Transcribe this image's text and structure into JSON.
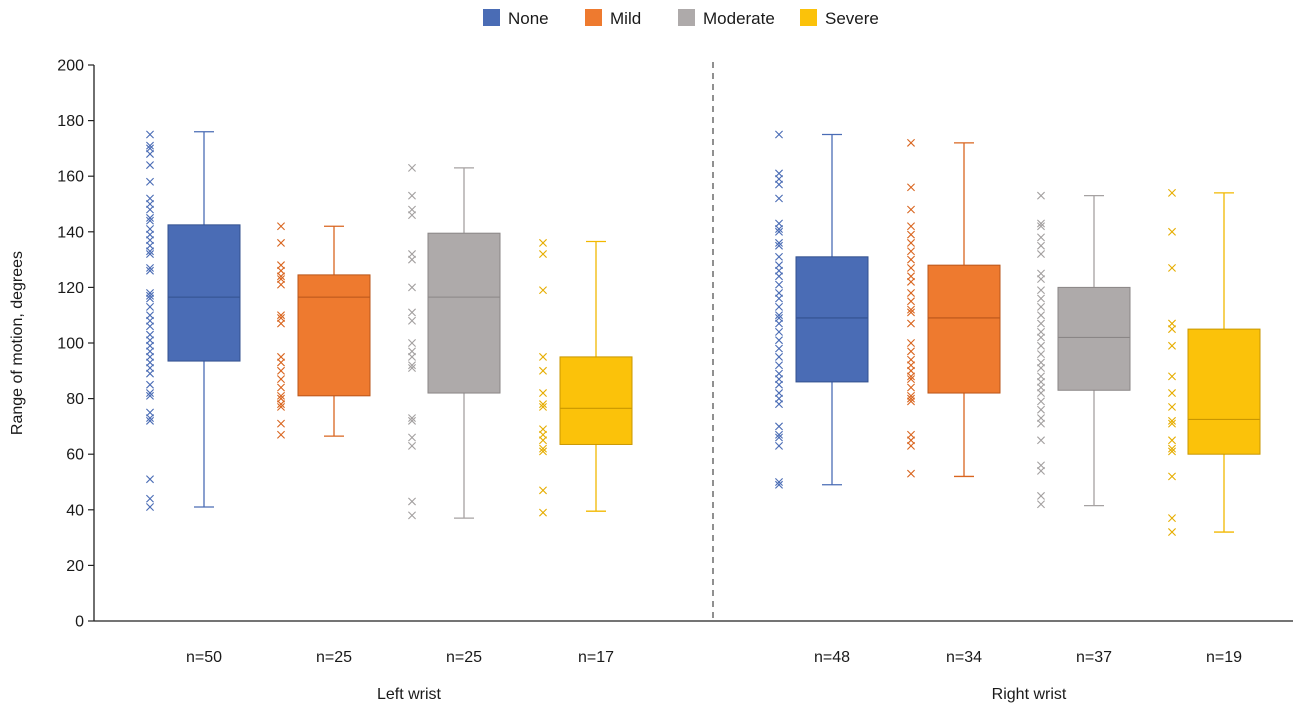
{
  "chart_data": {
    "type": "box",
    "ylabel": "Range of motion, degrees",
    "ylim": [
      0,
      200
    ],
    "yticks": [
      0,
      20,
      40,
      60,
      80,
      100,
      120,
      140,
      160,
      180,
      200
    ],
    "legend": {
      "position": "top-center",
      "entries": [
        {
          "name": "None",
          "color": "#4a6cb5"
        },
        {
          "name": "Mild",
          "color": "#ee7a2f"
        },
        {
          "name": "Moderate",
          "color": "#aeaaaa"
        },
        {
          "name": "Severe",
          "color": "#fbc20a"
        }
      ]
    },
    "groups": [
      {
        "label": "Left wrist",
        "boxes": [
          {
            "category": "None",
            "n_label": "n=50",
            "min": 41,
            "q1": 93.5,
            "median": 116.5,
            "q3": 142.5,
            "max": 176,
            "points": [
              175,
              171,
              170,
              168,
              164,
              158,
              152,
              150,
              148,
              145,
              144,
              141,
              139,
              137,
              135,
              133,
              132,
              127,
              126,
              118,
              117,
              116,
              113,
              110,
              108,
              106,
              103,
              101,
              99,
              97,
              95,
              93,
              91,
              89,
              85,
              82,
              81,
              75,
              73,
              72,
              51,
              44,
              41
            ]
          },
          {
            "category": "Mild",
            "n_label": "n=25",
            "min": 66.5,
            "q1": 81,
            "median": 116.5,
            "q3": 124.5,
            "max": 142,
            "points": [
              142,
              136,
              128,
              126,
              124,
              123,
              121,
              110,
              109,
              107,
              95,
              93,
              90,
              87,
              84,
              81,
              80,
              78,
              77,
              71,
              67
            ]
          },
          {
            "category": "Moderate",
            "n_label": "n=25",
            "min": 37,
            "q1": 82,
            "median": 116.5,
            "q3": 139.5,
            "max": 163,
            "points": [
              163,
              153,
              148,
              146,
              132,
              130,
              120,
              111,
              108,
              100,
              97,
              95,
              92,
              91,
              73,
              72,
              66,
              63,
              43,
              38
            ]
          },
          {
            "category": "Severe",
            "n_label": "n=17",
            "min": 39.5,
            "q1": 63.5,
            "median": 76.5,
            "q3": 95,
            "max": 136.5,
            "points": [
              136,
              132,
              119,
              95,
              90,
              82,
              78,
              77,
              69,
              67,
              65,
              62,
              61,
              47,
              39
            ]
          }
        ]
      },
      {
        "label": "Right wrist",
        "boxes": [
          {
            "category": "None",
            "n_label": "n=48",
            "min": 49,
            "q1": 86,
            "median": 109,
            "q3": 131,
            "max": 175,
            "points": [
              175,
              161,
              159,
              157,
              152,
              143,
              141,
              140,
              136,
              135,
              131,
              128,
              126,
              124,
              121,
              118,
              116,
              113,
              110,
              109,
              107,
              104,
              101,
              98,
              95,
              92,
              89,
              87,
              85,
              82,
              80,
              78,
              70,
              67,
              66,
              63,
              50,
              49
            ]
          },
          {
            "category": "Mild",
            "n_label": "n=34",
            "min": 52,
            "q1": 82,
            "median": 109,
            "q3": 128,
            "max": 172,
            "points": [
              172,
              156,
              148,
              142,
              139,
              136,
              133,
              130,
              127,
              124,
              122,
              118,
              115,
              112,
              111,
              107,
              100,
              97,
              94,
              92,
              90,
              88,
              87,
              84,
              81,
              80,
              79,
              67,
              65,
              63,
              53
            ]
          },
          {
            "category": "Moderate",
            "n_label": "n=37",
            "min": 41.5,
            "q1": 83,
            "median": 102,
            "q3": 120,
            "max": 153,
            "points": [
              153,
              143,
              142,
              138,
              135,
              132,
              125,
              123,
              119,
              116,
              113,
              110,
              107,
              104,
              102,
              99,
              96,
              93,
              91,
              88,
              86,
              84,
              82,
              79,
              76,
              73,
              71,
              65,
              56,
              54,
              45,
              42
            ]
          },
          {
            "category": "Severe",
            "n_label": "n=19",
            "min": 32,
            "q1": 60,
            "median": 72.5,
            "q3": 105,
            "max": 154,
            "points": [
              154,
              140,
              127,
              107,
              105,
              99,
              88,
              82,
              77,
              72,
              71,
              65,
              62,
              61,
              52,
              37,
              32
            ]
          }
        ]
      }
    ]
  }
}
